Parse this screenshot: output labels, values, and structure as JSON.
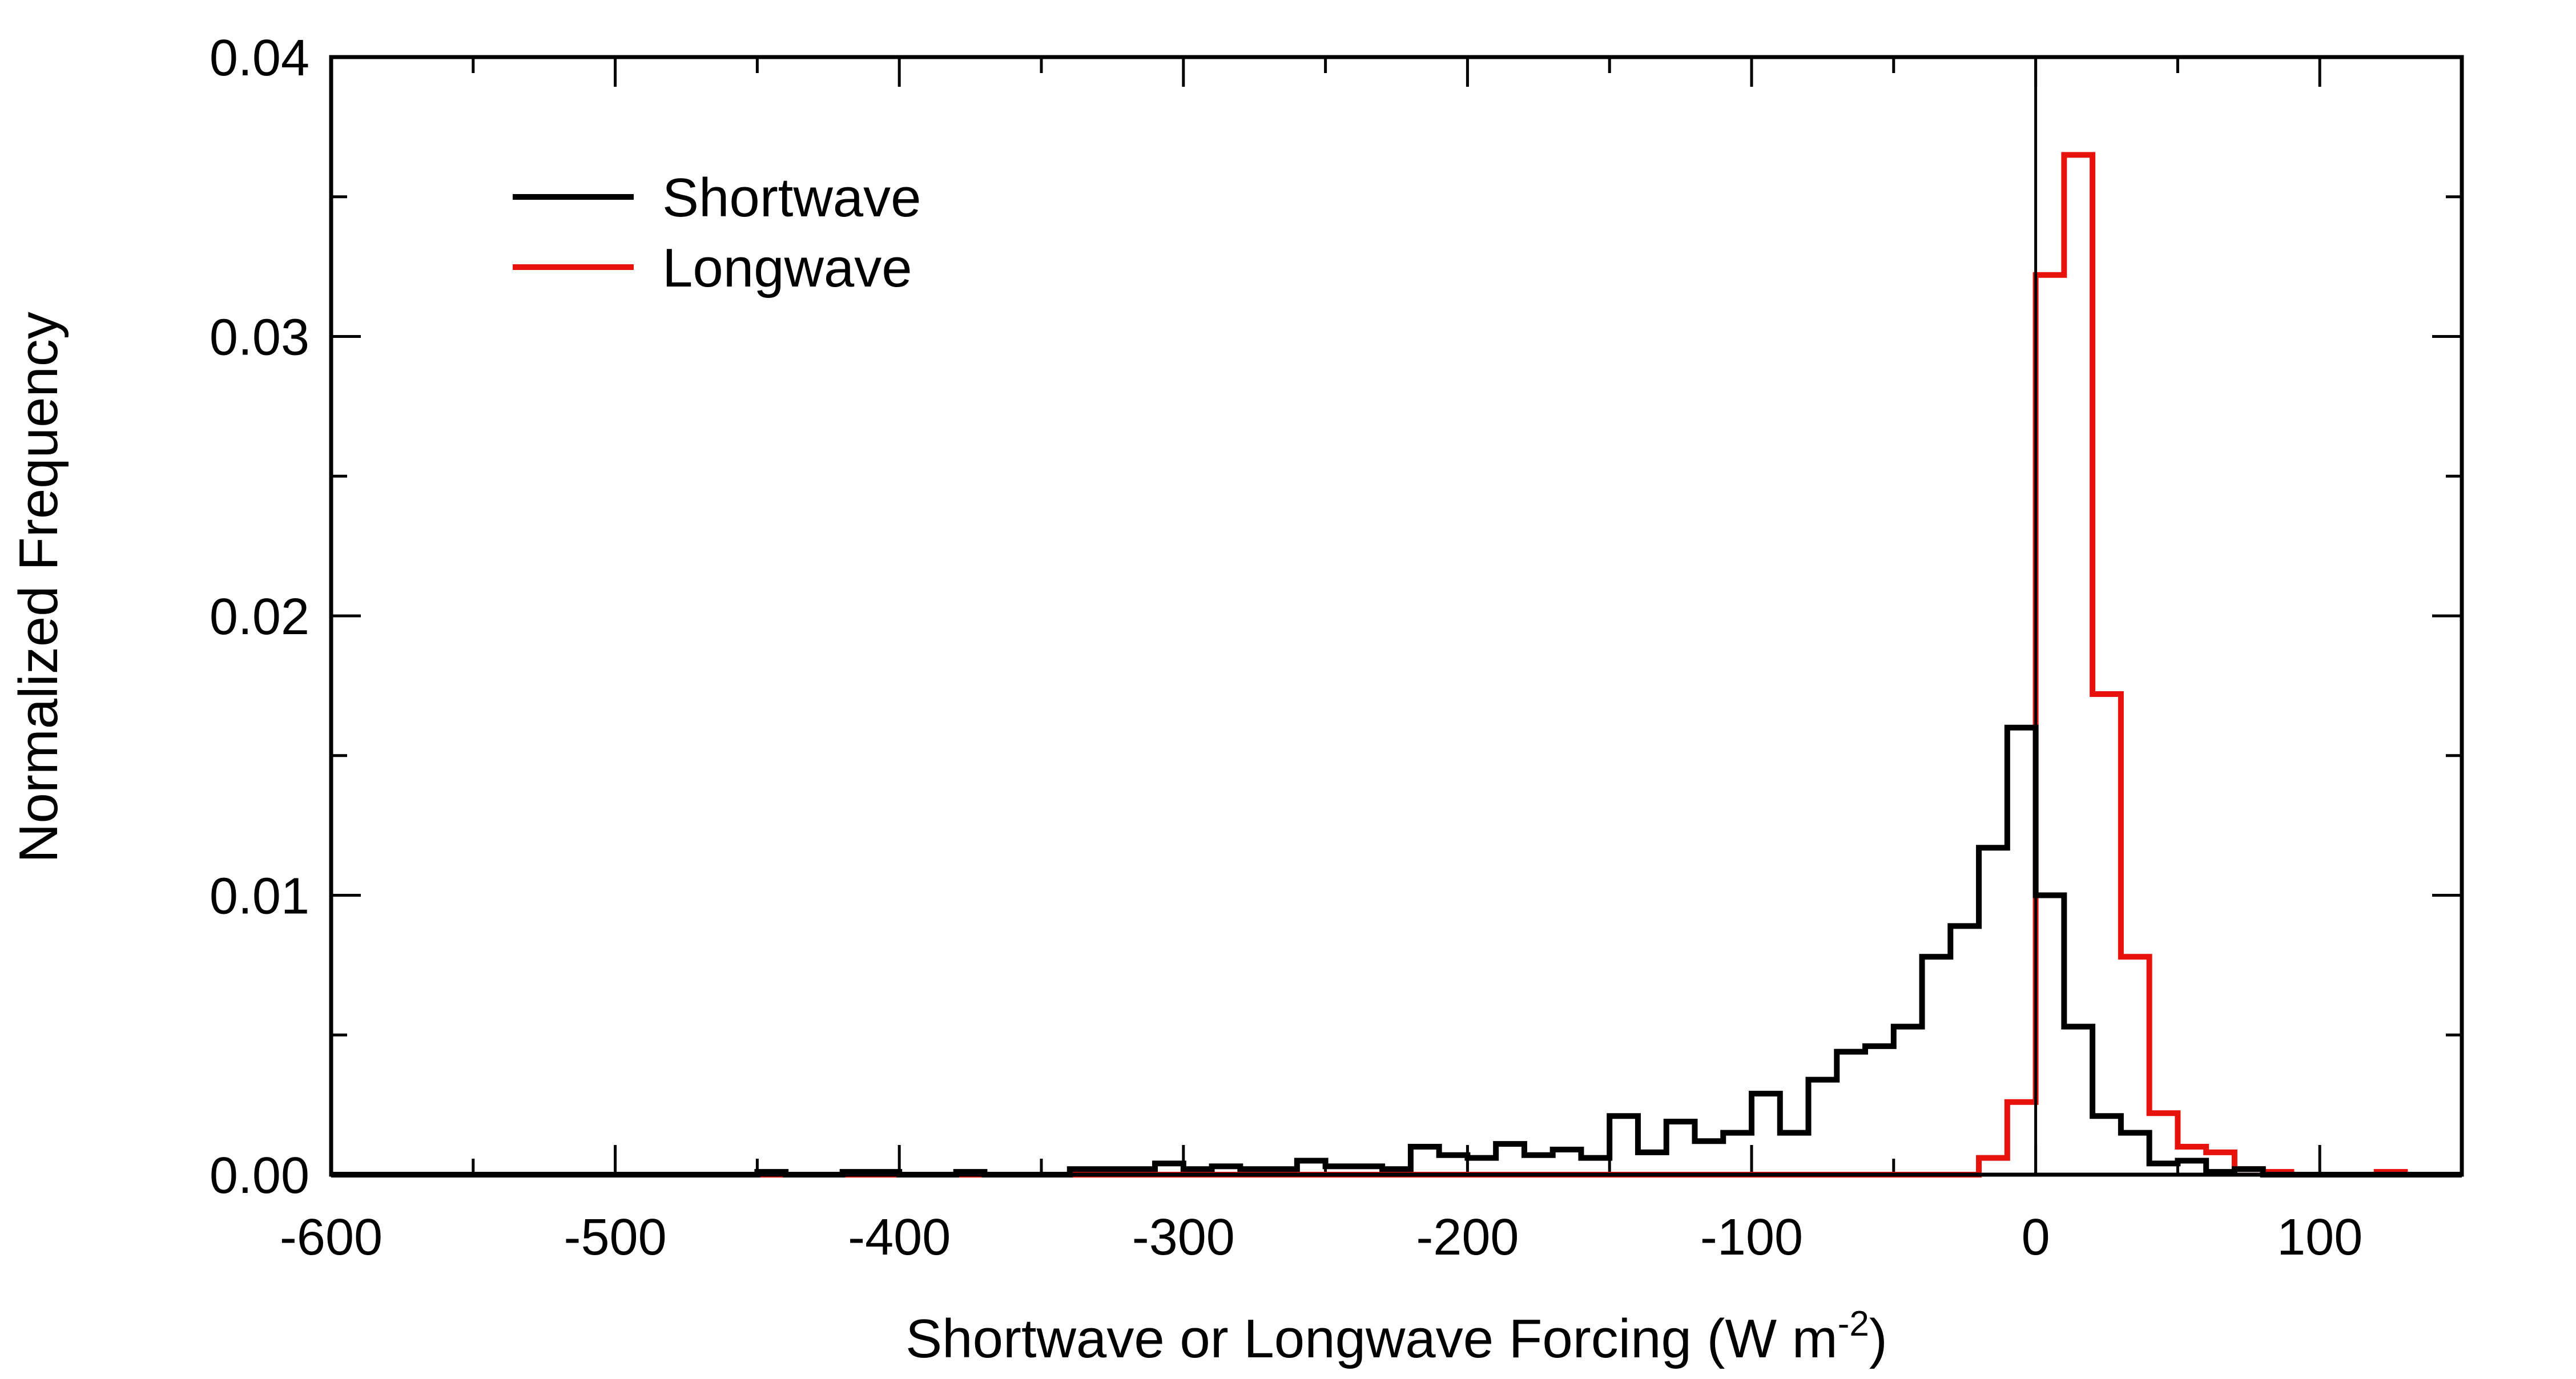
{
  "chart_data": {
    "type": "histogram",
    "xlabel": "Shortwave or Longwave Forcing (W m",
    "xlabel_superscript": "-2",
    "xlabel_suffix": ")",
    "ylabel": "Normalized Frequency",
    "xlim": [
      -600,
      150
    ],
    "ylim": [
      0.0,
      0.04
    ],
    "x_ticks": [
      -600,
      -500,
      -400,
      -300,
      -200,
      -100,
      0,
      100
    ],
    "x_tick_labels": [
      "-600",
      "-500",
      "-400",
      "-300",
      "-200",
      "-100",
      "0",
      "100"
    ],
    "y_ticks": [
      0.0,
      0.01,
      0.02,
      0.03,
      0.04
    ],
    "y_tick_labels": [
      "0.00",
      "0.01",
      "0.02",
      "0.03",
      "0.04"
    ],
    "zero_line_x": 0,
    "legend_position": "top-left",
    "series": [
      {
        "name": "Shortwave",
        "color": "#000000",
        "bins": [
          [
            -600,
            -450,
            0.0
          ],
          [
            -450,
            -440,
            0.0001
          ],
          [
            -440,
            -420,
            0.0
          ],
          [
            -420,
            -400,
            0.0001
          ],
          [
            -400,
            -380,
            0.0
          ],
          [
            -380,
            -370,
            0.0001
          ],
          [
            -370,
            -340,
            0.0
          ],
          [
            -340,
            -310,
            0.0002
          ],
          [
            -310,
            -300,
            0.0004
          ],
          [
            -300,
            -290,
            0.0002
          ],
          [
            -290,
            -280,
            0.0003
          ],
          [
            -280,
            -260,
            0.0002
          ],
          [
            -260,
            -250,
            0.0005
          ],
          [
            -250,
            -230,
            0.0003
          ],
          [
            -230,
            -220,
            0.0002
          ],
          [
            -220,
            -210,
            0.001
          ],
          [
            -210,
            -200,
            0.0007
          ],
          [
            -200,
            -190,
            0.0006
          ],
          [
            -190,
            -180,
            0.0011
          ],
          [
            -180,
            -170,
            0.0007
          ],
          [
            -170,
            -160,
            0.0009
          ],
          [
            -160,
            -150,
            0.0006
          ],
          [
            -150,
            -140,
            0.0021
          ],
          [
            -140,
            -130,
            0.0008
          ],
          [
            -130,
            -120,
            0.0019
          ],
          [
            -120,
            -110,
            0.0012
          ],
          [
            -110,
            -100,
            0.0015
          ],
          [
            -100,
            -90,
            0.0029
          ],
          [
            -90,
            -80,
            0.0015
          ],
          [
            -80,
            -70,
            0.0034
          ],
          [
            -70,
            -60,
            0.0044
          ],
          [
            -60,
            -50,
            0.0046
          ],
          [
            -50,
            -40,
            0.0053
          ],
          [
            -40,
            -30,
            0.0078
          ],
          [
            -30,
            -20,
            0.0089
          ],
          [
            -20,
            -10,
            0.0117
          ],
          [
            -10,
            0,
            0.016
          ],
          [
            0,
            10,
            0.01
          ],
          [
            10,
            20,
            0.0053
          ],
          [
            20,
            30,
            0.0021
          ],
          [
            30,
            40,
            0.0015
          ],
          [
            40,
            50,
            0.0004
          ],
          [
            50,
            60,
            0.0005
          ],
          [
            60,
            70,
            0.0001
          ],
          [
            70,
            80,
            0.0002
          ],
          [
            80,
            150,
            0.0
          ]
        ]
      },
      {
        "name": "Longwave",
        "color": "#e8120c",
        "bins": [
          [
            -600,
            -20,
            0.0
          ],
          [
            -20,
            -10,
            0.0006
          ],
          [
            -10,
            0,
            0.0026
          ],
          [
            0,
            10,
            0.0322
          ],
          [
            10,
            20,
            0.0365
          ],
          [
            20,
            30,
            0.0172
          ],
          [
            30,
            40,
            0.0078
          ],
          [
            40,
            50,
            0.0022
          ],
          [
            50,
            60,
            0.001
          ],
          [
            60,
            70,
            0.0008
          ],
          [
            70,
            80,
            0.0002
          ],
          [
            80,
            90,
            0.0001
          ],
          [
            90,
            120,
            0.0
          ],
          [
            120,
            130,
            0.0001
          ],
          [
            130,
            150,
            0.0
          ]
        ]
      }
    ]
  }
}
